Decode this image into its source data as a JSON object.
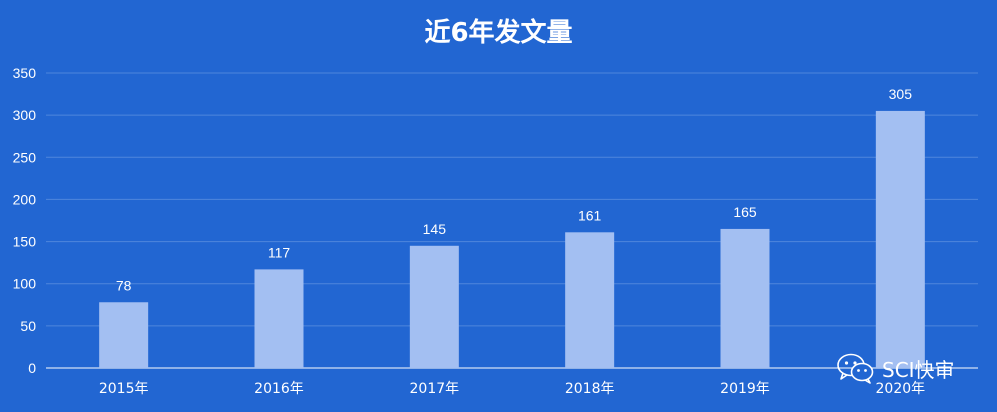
{
  "chart_data": {
    "type": "bar",
    "title": "近6年发文量",
    "categories": [
      "2015年",
      "2016年",
      "2017年",
      "2018年",
      "2019年",
      "2020年"
    ],
    "values": [
      78,
      117,
      145,
      161,
      165,
      305
    ],
    "ylim": [
      0,
      350
    ],
    "yticks": [
      0,
      50,
      100,
      150,
      200,
      250,
      300,
      350
    ],
    "grid": true,
    "legend": "none",
    "colors": {
      "background": "#2266d2",
      "bar": "#a3bff2",
      "grid": "#4f86dc",
      "text": "#ffffff"
    }
  },
  "watermark": {
    "text": "SCI快审",
    "icon": "wechat-icon"
  }
}
